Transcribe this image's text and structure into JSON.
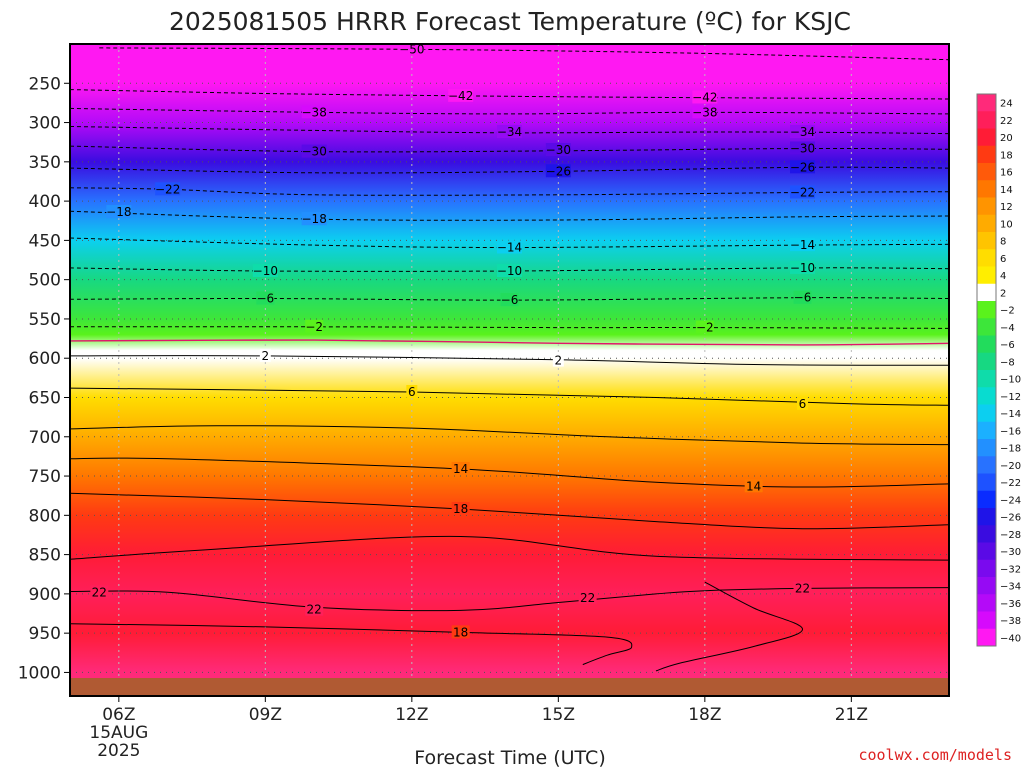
{
  "chart_data": {
    "type": "heatmap",
    "title": "2025081505 HRRR Forecast Temperature (ºC) for KSJC",
    "xlabel": "Forecast Time (UTC)",
    "ylabel": "",
    "credit": "coolwx.com/models",
    "x_ticks": [
      {
        "hour": 6,
        "label": "06Z",
        "sub": [
          "15AUG",
          "2025"
        ]
      },
      {
        "hour": 9,
        "label": "09Z"
      },
      {
        "hour": 12,
        "label": "12Z"
      },
      {
        "hour": 15,
        "label": "15Z"
      },
      {
        "hour": 18,
        "label": "18Z"
      },
      {
        "hour": 21,
        "label": "21Z"
      }
    ],
    "xlim": [
      5,
      23
    ],
    "y_ticks": [
      250,
      300,
      350,
      400,
      450,
      500,
      550,
      600,
      650,
      700,
      750,
      800,
      850,
      900,
      950,
      1000
    ],
    "ylim": [
      1030,
      200
    ],
    "colorbar": {
      "labels": [
        "24",
        "22",
        "20",
        "18",
        "16",
        "14",
        "12",
        "10",
        "8",
        "6",
        "4",
        "2",
        "−2",
        "−4",
        "−6",
        "−8",
        "−10",
        "−12",
        "−14",
        "−16",
        "−18",
        "−20",
        "−22",
        "−24",
        "−26",
        "−28",
        "−30",
        "−32",
        "−34",
        "−36",
        "−38",
        "−40"
      ],
      "colors": [
        "#ff2a7a",
        "#ff1f5a",
        "#ff1c36",
        "#ff3a12",
        "#ff5a0a",
        "#ff7700",
        "#ff9400",
        "#ffab00",
        "#ffc400",
        "#ffdd00",
        "#ffee00",
        "#ffffff",
        "#5af21c",
        "#3de63a",
        "#22dc5c",
        "#17d882",
        "#0fdcaa",
        "#08dcd0",
        "#0ccff0",
        "#1bb0ff",
        "#2290ff",
        "#2872ff",
        "#1e52ff",
        "#0a2cff",
        "#1f14e8",
        "#3a0ce0",
        "#5a0ae6",
        "#7a0aee",
        "#960af4",
        "#b40af8",
        "#d60afc",
        "#ff18f2"
      ]
    },
    "temperature_levels": [
      {
        "p": 210,
        "t": -52
      },
      {
        "p": 250,
        "t": -44
      },
      {
        "p": 300,
        "t": -36
      },
      {
        "p": 350,
        "t": -28
      },
      {
        "p": 400,
        "t": -21
      },
      {
        "p": 450,
        "t": -14
      },
      {
        "p": 500,
        "t": -9
      },
      {
        "p": 550,
        "t": -5
      },
      {
        "p": 570,
        "t": -2
      },
      {
        "p": 590,
        "t": 1
      },
      {
        "p": 600,
        "t": 2
      },
      {
        "p": 650,
        "t": 6
      },
      {
        "p": 700,
        "t": 10
      },
      {
        "p": 750,
        "t": 14
      },
      {
        "p": 800,
        "t": 18
      },
      {
        "p": 850,
        "t": 20
      },
      {
        "p": 900,
        "t": 22
      },
      {
        "p": 950,
        "t": 20
      },
      {
        "p": 1000,
        "t": 24
      }
    ],
    "contours": [
      {
        "value": -50,
        "label": "−50",
        "dashed": true,
        "points": [
          [
            5.6,
            205
          ],
          [
            10,
            206
          ],
          [
            14,
            208
          ],
          [
            18,
            212
          ],
          [
            23,
            220
          ]
        ],
        "labels_at": [
          [
            12,
            207
          ]
        ]
      },
      {
        "value": -42,
        "label": "−42",
        "dashed": true,
        "points": [
          [
            5,
            258
          ],
          [
            9,
            263
          ],
          [
            13,
            266
          ],
          [
            17,
            268
          ],
          [
            23,
            270
          ]
        ],
        "labels_at": [
          [
            13,
            266
          ],
          [
            18,
            268
          ]
        ]
      },
      {
        "value": -38,
        "label": "−38",
        "dashed": true,
        "points": [
          [
            5,
            282
          ],
          [
            10,
            287
          ],
          [
            14,
            289
          ],
          [
            18,
            287
          ],
          [
            23,
            289
          ]
        ],
        "labels_at": [
          [
            10,
            287
          ],
          [
            18,
            287
          ]
        ]
      },
      {
        "value": -34,
        "label": "−34",
        "dashed": true,
        "points": [
          [
            5,
            305
          ],
          [
            10,
            310
          ],
          [
            14,
            313
          ],
          [
            19,
            312
          ],
          [
            23,
            314
          ]
        ],
        "labels_at": [
          [
            14,
            312
          ],
          [
            20,
            312
          ]
        ]
      },
      {
        "value": -30,
        "label": "−30",
        "dashed": true,
        "points": [
          [
            5,
            330
          ],
          [
            10,
            337
          ],
          [
            15,
            336
          ],
          [
            20,
            333
          ],
          [
            23,
            334
          ]
        ],
        "labels_at": [
          [
            10,
            337
          ],
          [
            15,
            335
          ],
          [
            20,
            333
          ]
        ]
      },
      {
        "value": -26,
        "label": "−26",
        "dashed": true,
        "points": [
          [
            5,
            358
          ],
          [
            10,
            364
          ],
          [
            15,
            362
          ],
          [
            20,
            357
          ],
          [
            23,
            358
          ]
        ],
        "labels_at": [
          [
            15,
            362
          ],
          [
            20,
            357
          ]
        ]
      },
      {
        "value": -22,
        "label": "−22",
        "dashed": true,
        "points": [
          [
            5,
            383
          ],
          [
            7,
            385
          ],
          [
            10,
            392
          ],
          [
            15,
            392
          ],
          [
            20,
            389
          ],
          [
            23,
            388
          ]
        ],
        "labels_at": [
          [
            7,
            385
          ],
          [
            20,
            389
          ]
        ]
      },
      {
        "value": -18,
        "label": "−18",
        "dashed": true,
        "points": [
          [
            5,
            413
          ],
          [
            10,
            423
          ],
          [
            15,
            424
          ],
          [
            20,
            420
          ],
          [
            23,
            419
          ]
        ],
        "labels_at": [
          [
            6,
            414
          ],
          [
            10,
            423
          ]
        ]
      },
      {
        "value": -14,
        "label": "−14",
        "dashed": true,
        "points": [
          [
            5,
            447
          ],
          [
            10,
            456
          ],
          [
            14,
            459
          ],
          [
            20,
            456
          ],
          [
            23,
            455
          ]
        ],
        "labels_at": [
          [
            14,
            459
          ],
          [
            20,
            456
          ]
        ]
      },
      {
        "value": -10,
        "label": "−10",
        "dashed": true,
        "points": [
          [
            5,
            485
          ],
          [
            9,
            489
          ],
          [
            14,
            489
          ],
          [
            20,
            485
          ],
          [
            23,
            486
          ]
        ],
        "labels_at": [
          [
            9,
            489
          ],
          [
            14,
            489
          ],
          [
            20,
            485
          ]
        ]
      },
      {
        "value": -6,
        "label": "−6",
        "dashed": true,
        "points": [
          [
            5,
            525
          ],
          [
            9,
            524
          ],
          [
            14,
            526
          ],
          [
            20,
            523
          ],
          [
            23,
            524
          ]
        ],
        "labels_at": [
          [
            9,
            524
          ],
          [
            14,
            526
          ],
          [
            20,
            523
          ]
        ]
      },
      {
        "value": -2,
        "label": "−2",
        "dashed": true,
        "points": [
          [
            5,
            560
          ],
          [
            10,
            560
          ],
          [
            15,
            561
          ],
          [
            18,
            561
          ],
          [
            23,
            562
          ]
        ],
        "labels_at": [
          [
            10,
            560
          ],
          [
            18,
            561
          ]
        ]
      },
      {
        "value": 0,
        "label": "",
        "dashed": false,
        "color": "#e0166a",
        "points": [
          [
            5,
            578
          ],
          [
            10,
            577
          ],
          [
            15,
            581
          ],
          [
            20,
            583
          ],
          [
            23,
            581
          ]
        ],
        "labels_at": []
      },
      {
        "value": 2,
        "label": "2",
        "dashed": false,
        "points": [
          [
            5,
            597
          ],
          [
            9,
            597
          ],
          [
            15,
            602
          ],
          [
            19,
            608
          ],
          [
            23,
            609
          ]
        ],
        "labels_at": [
          [
            9,
            597
          ],
          [
            15,
            603
          ]
        ]
      },
      {
        "value": 6,
        "label": "6",
        "dashed": false,
        "points": [
          [
            5,
            638
          ],
          [
            12,
            643
          ],
          [
            17,
            650
          ],
          [
            21,
            658
          ],
          [
            23,
            660
          ]
        ],
        "labels_at": [
          [
            12,
            643
          ],
          [
            20,
            658
          ]
        ]
      },
      {
        "value": 10,
        "label": "",
        "dashed": false,
        "points": [
          [
            5,
            690
          ],
          [
            8,
            686
          ],
          [
            12,
            689
          ],
          [
            16,
            700
          ],
          [
            20,
            708
          ],
          [
            23,
            710
          ]
        ],
        "labels_at": []
      },
      {
        "value": 14,
        "label": "14",
        "dashed": false,
        "points": [
          [
            5,
            728
          ],
          [
            7,
            728
          ],
          [
            13,
            741
          ],
          [
            17,
            758
          ],
          [
            20,
            764
          ],
          [
            23,
            760
          ]
        ],
        "labels_at": [
          [
            13,
            741
          ],
          [
            19,
            763
          ]
        ]
      },
      {
        "value": 18,
        "label": "18",
        "dashed": false,
        "points": [
          [
            5,
            772
          ],
          [
            9,
            780
          ],
          [
            13,
            792
          ],
          [
            17,
            808
          ],
          [
            20,
            817
          ],
          [
            23,
            812
          ]
        ],
        "labels_at": [
          [
            13,
            792
          ]
        ]
      },
      {
        "value": 20,
        "label": "",
        "dashed": false,
        "points": [
          [
            5,
            856
          ],
          [
            8,
            843
          ],
          [
            13,
            827
          ],
          [
            17,
            852
          ],
          [
            23,
            857
          ]
        ],
        "labels_at": []
      },
      {
        "value": 22,
        "label": "22",
        "dashed": false,
        "points": [
          [
            5,
            897
          ],
          [
            7,
            898
          ],
          [
            10,
            917
          ],
          [
            13,
            921
          ],
          [
            15,
            911
          ],
          [
            17,
            900
          ],
          [
            18,
            896
          ],
          [
            20,
            893
          ],
          [
            23,
            892
          ]
        ],
        "labels_at": [
          [
            5.6,
            898
          ],
          [
            10,
            920
          ],
          [
            15.6,
            905
          ],
          [
            20,
            893
          ]
        ]
      },
      {
        "value": 18,
        "label": "18",
        "dashed": false,
        "points": [
          [
            5,
            938
          ],
          [
            9,
            942
          ],
          [
            13,
            949
          ],
          [
            16,
            955
          ],
          [
            16.5,
            968
          ],
          [
            16,
            978
          ],
          [
            15.5,
            990
          ]
        ],
        "labels_at": [
          [
            13,
            949
          ]
        ]
      },
      {
        "value": 18,
        "label": "",
        "dashed": false,
        "points": [
          [
            18,
            885
          ],
          [
            19,
            918
          ],
          [
            20,
            945
          ],
          [
            19,
            967
          ],
          [
            17.5,
            988
          ],
          [
            17,
            998
          ]
        ],
        "labels_at": []
      }
    ]
  }
}
